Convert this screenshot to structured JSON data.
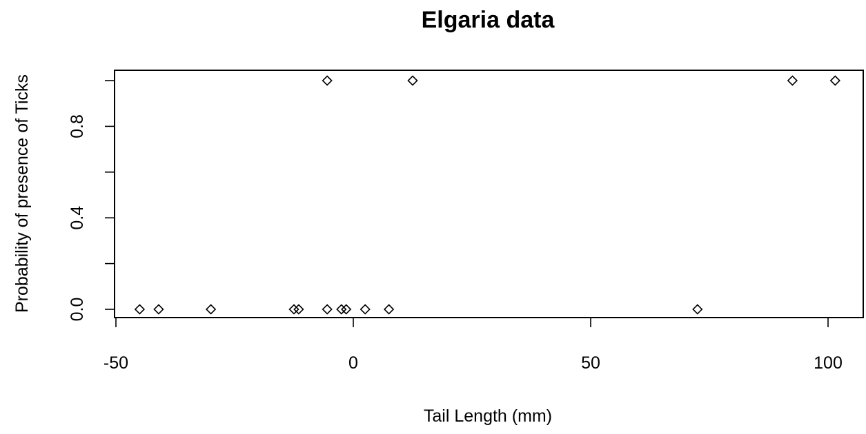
{
  "chart_data": {
    "type": "scatter",
    "title": "Elgaria data",
    "xlabel": "Tail Length (mm)",
    "ylabel": "Probability of presence of Ticks",
    "xlim": [
      -50,
      105
    ],
    "ylim": [
      0,
      1
    ],
    "x_ticks": [
      -50,
      0,
      50,
      100
    ],
    "x_tick_labels": [
      "-50",
      "0",
      "50",
      "100"
    ],
    "y_ticks": [
      0,
      0.2,
      0.4,
      0.6,
      0.8,
      1.0
    ],
    "y_tick_labels": [
      "0.0",
      "",
      "0.4",
      "",
      "0.8",
      ""
    ],
    "marker": "diamond-open",
    "grid": false,
    "points": [
      {
        "x": -45,
        "y": 0
      },
      {
        "x": -41,
        "y": 0
      },
      {
        "x": -30,
        "y": 0
      },
      {
        "x": -12.5,
        "y": 0
      },
      {
        "x": -11.5,
        "y": 0
      },
      {
        "x": -5.5,
        "y": 0
      },
      {
        "x": -2.5,
        "y": 0
      },
      {
        "x": -1.5,
        "y": 0
      },
      {
        "x": 2.5,
        "y": 0
      },
      {
        "x": 7.5,
        "y": 0
      },
      {
        "x": 72.5,
        "y": 0
      },
      {
        "x": -5.5,
        "y": 1
      },
      {
        "x": 12.5,
        "y": 1
      },
      {
        "x": 92.5,
        "y": 1
      },
      {
        "x": 101.5,
        "y": 1
      }
    ]
  }
}
